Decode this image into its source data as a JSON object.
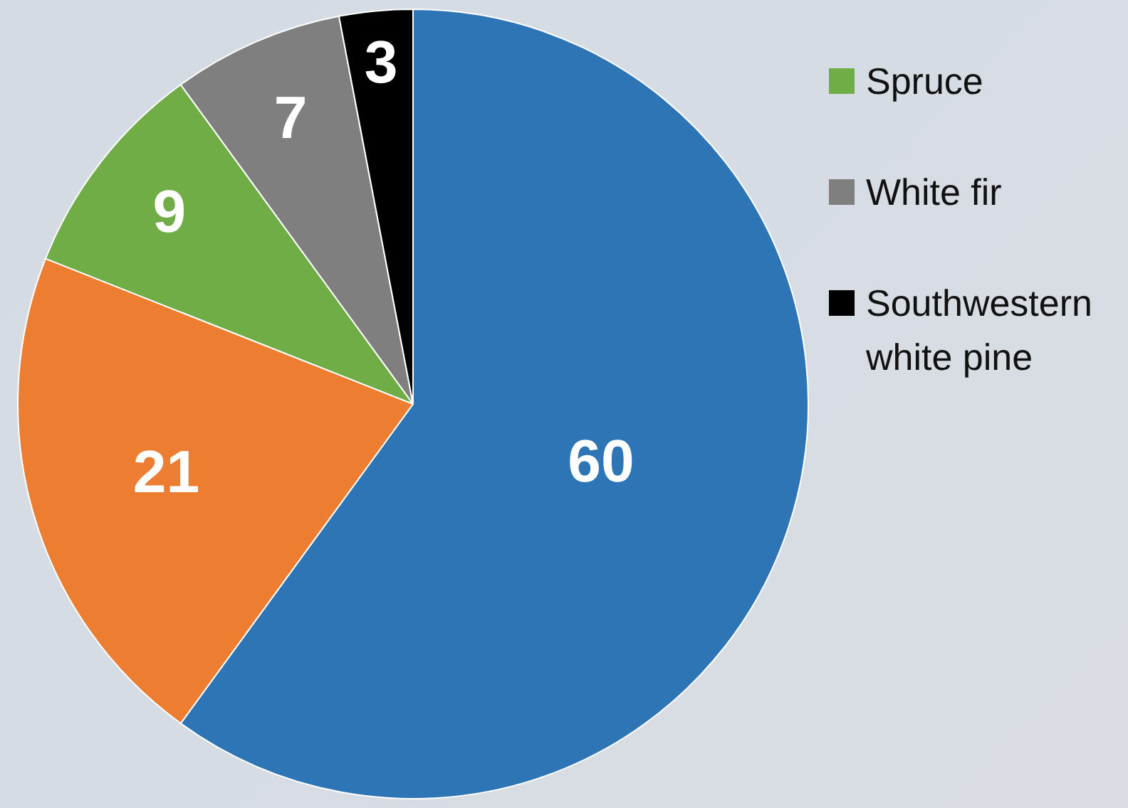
{
  "chart_data": {
    "type": "pie",
    "categories": [
      null,
      null,
      "Spruce",
      "White fir",
      "Southwestern white pine"
    ],
    "values": [
      60,
      21,
      9,
      7,
      3
    ],
    "colors": [
      "#2e75b6",
      "#ed7d31",
      "#70ad47",
      "#7f7f7f",
      "#000000"
    ],
    "data_labels": true,
    "legend": "top right"
  }
}
